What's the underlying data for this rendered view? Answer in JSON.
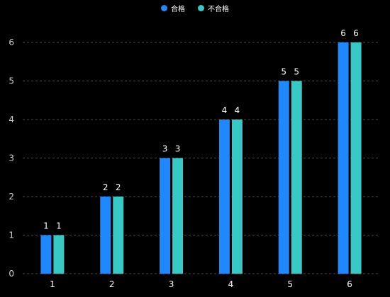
{
  "chart_data": {
    "type": "bar",
    "categories": [
      "1",
      "2",
      "3",
      "4",
      "5",
      "6"
    ],
    "series": [
      {
        "name": "合格",
        "values": [
          1,
          2,
          3,
          4,
          5,
          6
        ],
        "color": "#1e88ff"
      },
      {
        "name": "不合格",
        "values": [
          1,
          2,
          3,
          4,
          5,
          6
        ],
        "color": "#36c9c6"
      }
    ],
    "y_ticks": [
      "0",
      "1",
      "2",
      "3",
      "4",
      "5",
      "6"
    ],
    "ylim": [
      0,
      6
    ],
    "grid": true,
    "legend_position": "top-center",
    "data_labels": true
  },
  "colors": {
    "background": "#000000",
    "text": "#ffffff",
    "axis_text": "#cfcfcf",
    "grid": "#4a4a4a"
  }
}
